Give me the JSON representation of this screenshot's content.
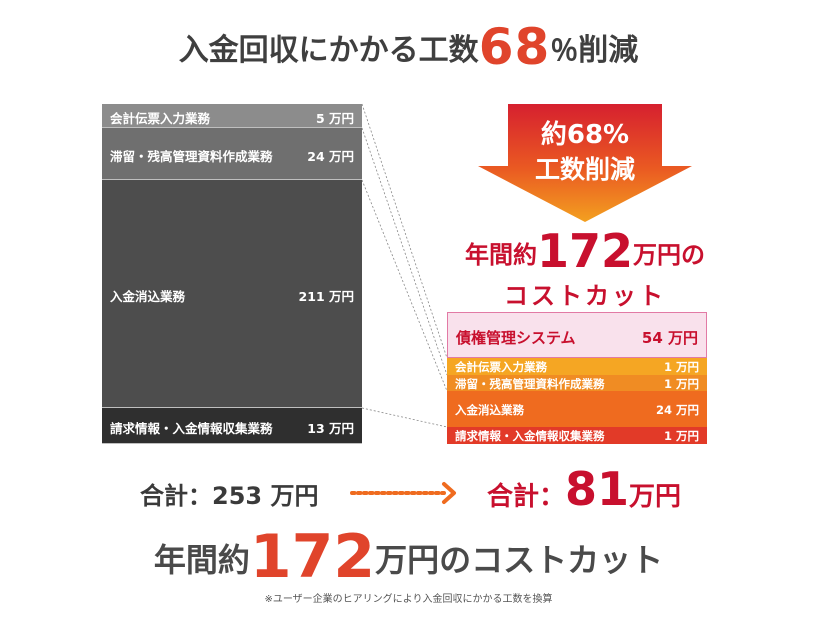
{
  "header": {
    "prefix": "入金回収にかかる工数",
    "number": "68",
    "suffix_pct": "％",
    "suffix": "削減"
  },
  "chart_data": {
    "type": "stacked-bar",
    "before": {
      "segments": [
        {
          "label": "会計伝票入力業務",
          "value": 5,
          "value_text": "5 万円"
        },
        {
          "label": "滞留・残高管理資料作成業務",
          "value": 24,
          "value_text": "24 万円"
        },
        {
          "label": "入金消込業務",
          "value": 211,
          "value_text": "211 万円"
        },
        {
          "label": "請求情報・入金情報収集業務",
          "value": 13,
          "value_text": "13 万円"
        }
      ],
      "total_label": "合計：253 万円",
      "total": 253
    },
    "after": {
      "segments": [
        {
          "label": "債権管理システム",
          "value": 54,
          "value_text": "54 万円"
        },
        {
          "label": "会計伝票入力業務",
          "value": 1,
          "value_text": "1 万円"
        },
        {
          "label": "滞留・残高管理資料作成業務",
          "value": 1,
          "value_text": "1 万円"
        },
        {
          "label": "入金消込業務",
          "value": 24,
          "value_text": "24 万円"
        },
        {
          "label": "請求情報・入金情報収集業務",
          "value": 1,
          "value_text": "1 万円"
        }
      ],
      "total_prefix": "合計：",
      "total_value": "81",
      "total_unit": "万円",
      "total": 81
    },
    "arrow": {
      "line1": "約68%",
      "line2": "工数削減"
    },
    "cut": {
      "line1_pre": "年間約",
      "line1_num": "172",
      "line1_post": "万円の",
      "line2": "コストカット"
    },
    "colors": {
      "before": [
        "#8c8c8c",
        "#6f6f6f",
        "#4d4d4d",
        "#2f2f2f"
      ],
      "after": [
        "#f9e1ec",
        "#f5a623",
        "#f08c23",
        "#ef6b1f",
        "#e23a28"
      ],
      "accent": "#e0442b",
      "cut_text": "#c8102e"
    }
  },
  "footer": {
    "pre": "年間約",
    "number": "172",
    "post": "万円のコストカット",
    "note": "※ユーザー企業のヒアリングにより入金回収にかかる工数を換算"
  }
}
